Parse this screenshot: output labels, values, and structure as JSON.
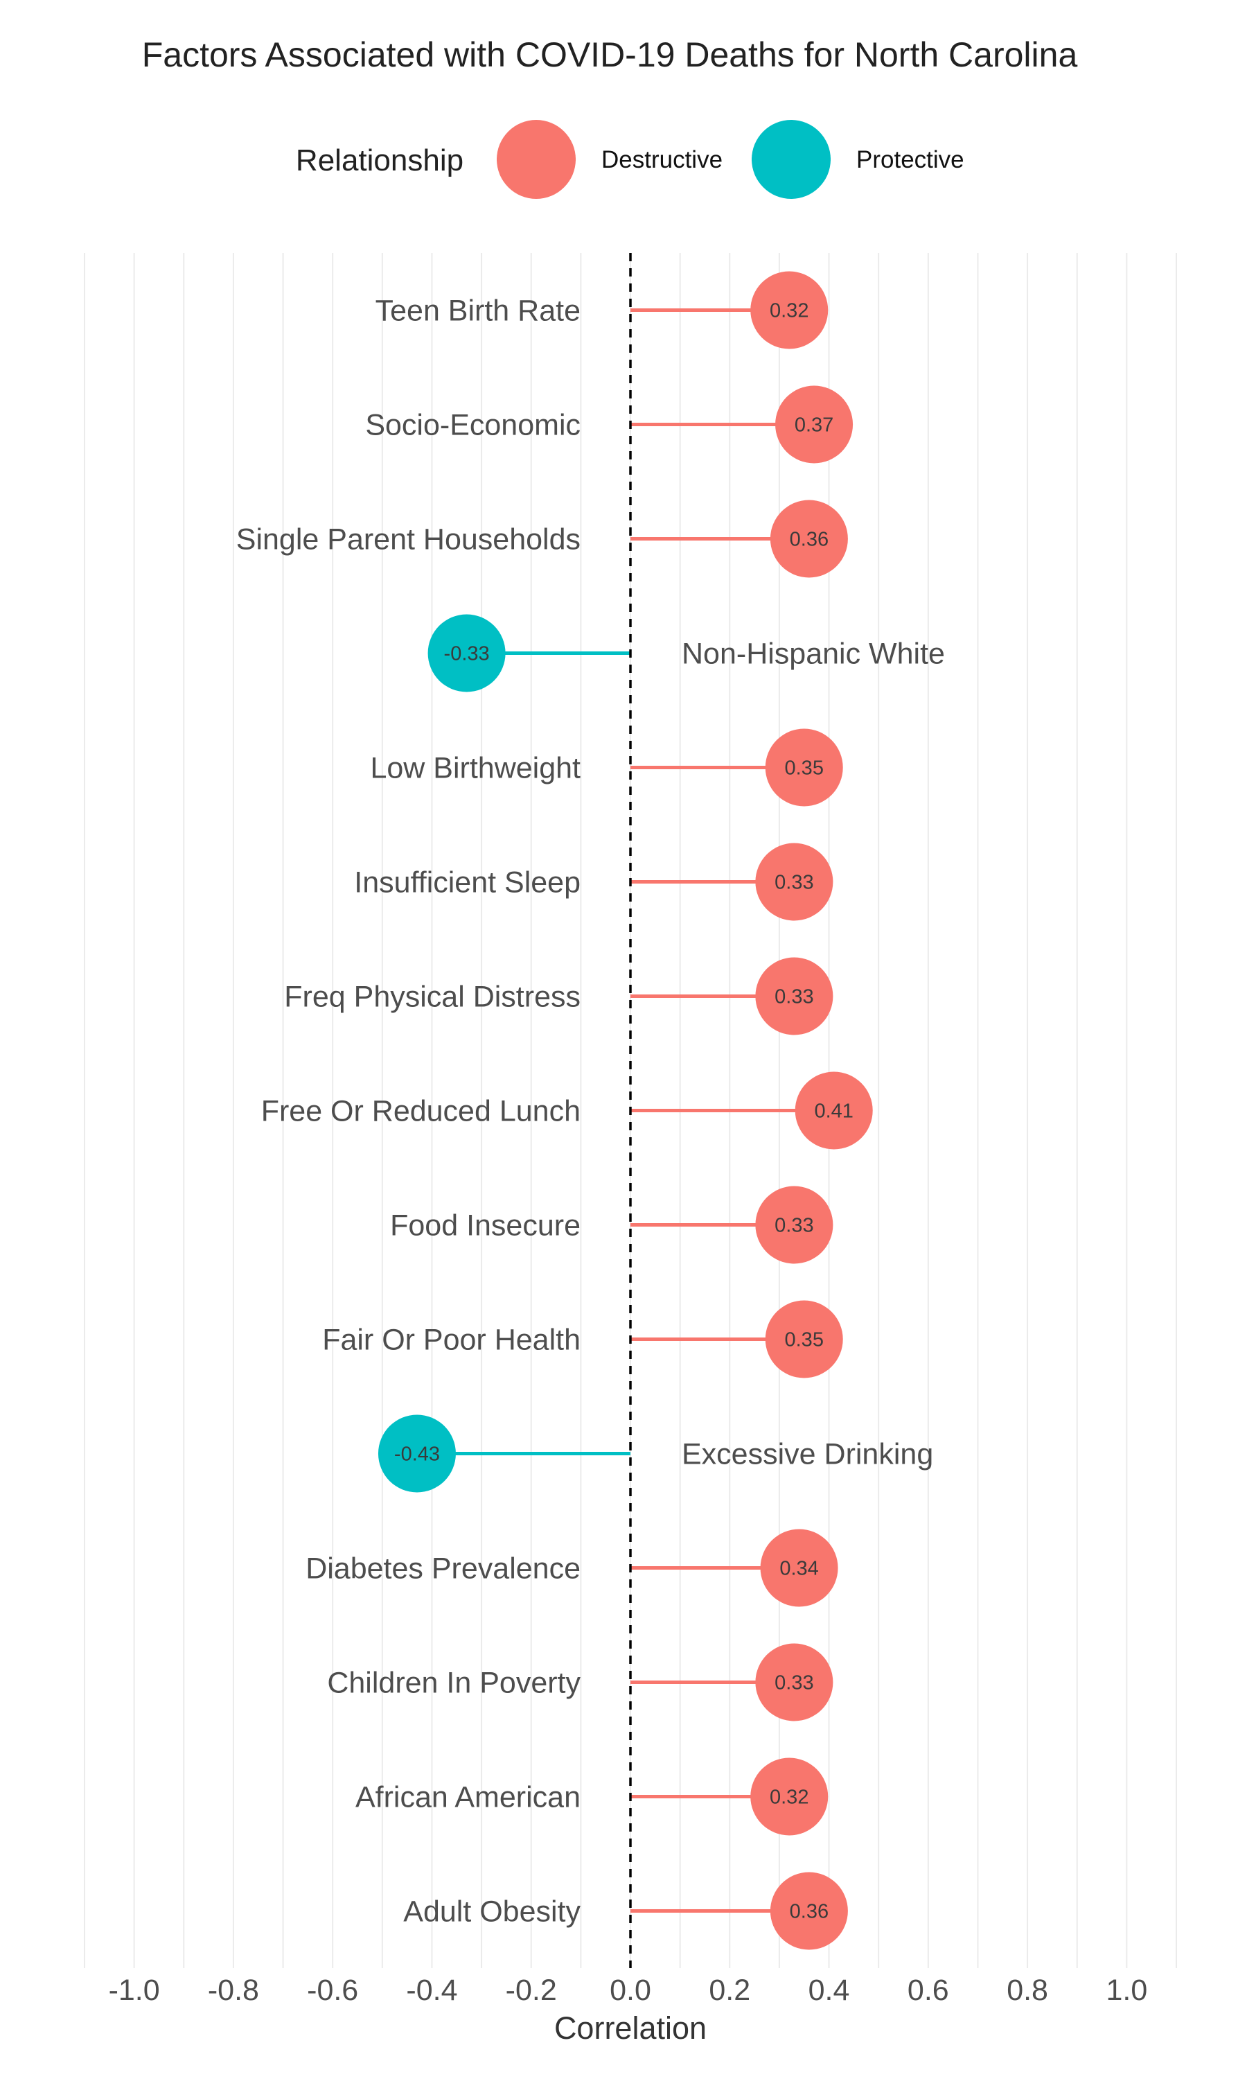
{
  "chart_data": {
    "type": "lollipop",
    "title": "Factors Associated with COVID-19 Deaths for North Carolina",
    "xlabel": "Correlation",
    "xlim": [
      -1.1,
      1.1
    ],
    "x_ticks": [
      -1.0,
      -0.8,
      -0.6,
      -0.4,
      -0.2,
      0.0,
      0.2,
      0.4,
      0.6,
      0.8,
      1.0
    ],
    "x_tick_labels": [
      "-1.0",
      "-0.8",
      "-0.6",
      "-0.4",
      "-0.2",
      "0.0",
      "0.2",
      "0.4",
      "0.6",
      "0.8",
      "1.0"
    ],
    "reference_line": 0.0,
    "grid": "vertical",
    "legend": {
      "title": "Relationship",
      "position": "top",
      "entries": [
        {
          "name": "Destructive",
          "color": "#F8766D"
        },
        {
          "name": "Protective",
          "color": "#00BFC4"
        }
      ]
    },
    "categories": [
      "Teen Birth Rate",
      "Socio-Economic",
      "Single Parent Households",
      "Non-Hispanic White",
      "Low Birthweight",
      "Insufficient Sleep",
      "Freq Physical Distress",
      "Free Or Reduced Lunch",
      "Food Insecure",
      "Fair Or Poor Health",
      "Excessive Drinking",
      "Diabetes Prevalence",
      "Children In Poverty",
      "African American",
      "Adult Obesity"
    ],
    "values": [
      0.32,
      0.37,
      0.36,
      -0.33,
      0.35,
      0.33,
      0.33,
      0.41,
      0.33,
      0.35,
      -0.43,
      0.34,
      0.33,
      0.32,
      0.36
    ],
    "value_labels": [
      "0.32",
      "0.37",
      "0.36",
      "-0.33",
      "0.35",
      "0.33",
      "0.33",
      "0.41",
      "0.33",
      "0.35",
      "-0.43",
      "0.34",
      "0.33",
      "0.32",
      "0.36"
    ],
    "relationship": [
      "Destructive",
      "Destructive",
      "Destructive",
      "Protective",
      "Destructive",
      "Destructive",
      "Destructive",
      "Destructive",
      "Destructive",
      "Destructive",
      "Protective",
      "Destructive",
      "Destructive",
      "Destructive",
      "Destructive"
    ]
  }
}
